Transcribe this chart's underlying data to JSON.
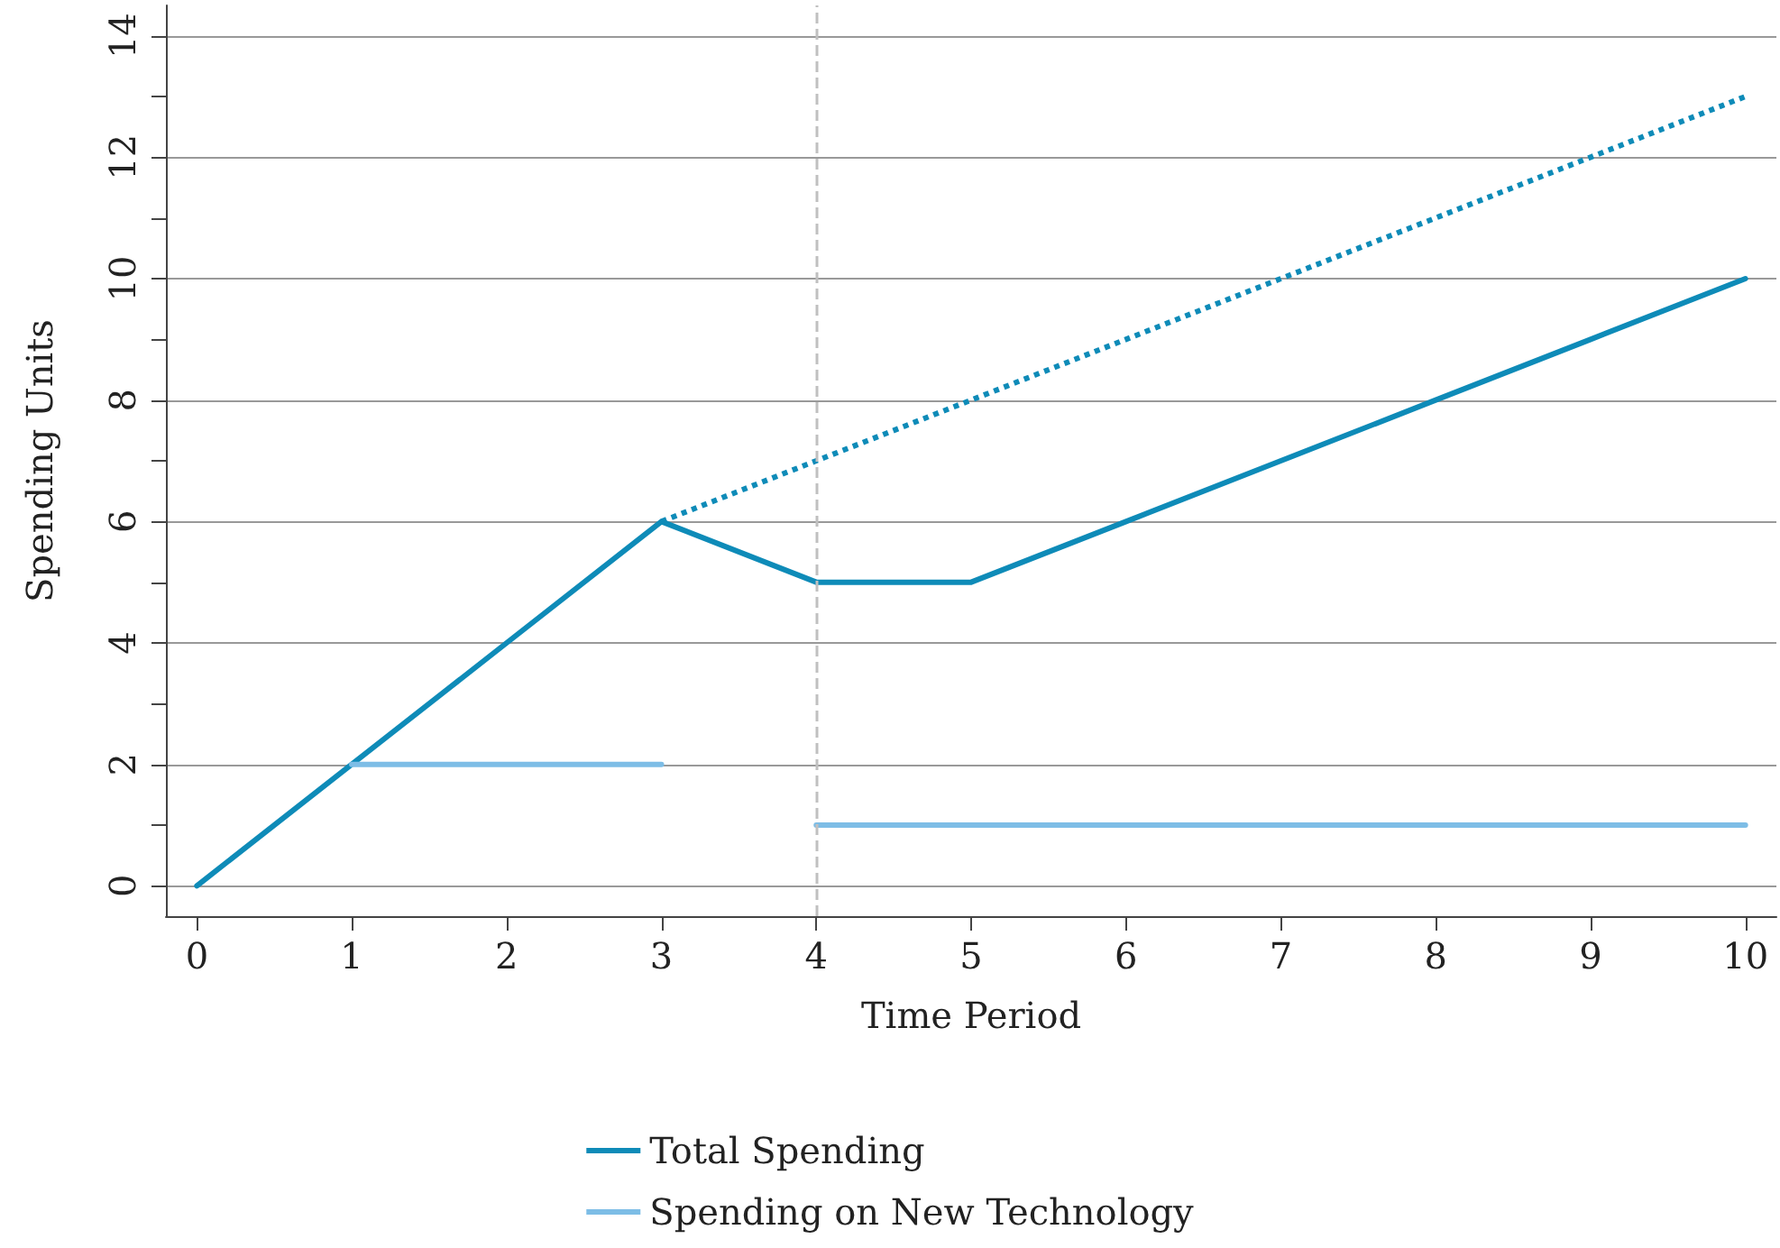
{
  "chart_data": {
    "type": "line",
    "xlabel": "Time Period",
    "ylabel": "Spending Units",
    "series": [
      {
        "name": "Total Spending",
        "color": "#0e8bb8",
        "x": [
          0,
          1,
          2,
          3,
          4,
          5,
          6,
          7,
          8,
          9,
          10
        ],
        "values": [
          0,
          2,
          4,
          6,
          5,
          5,
          6,
          7,
          8,
          9,
          10
        ]
      },
      {
        "color": "#0e8bb8",
        "line_style": "dotted",
        "x": [
          3,
          4,
          5,
          6,
          7,
          8,
          9,
          10
        ],
        "values": [
          6,
          7,
          8,
          9,
          10,
          11,
          12,
          13
        ]
      },
      {
        "name": "Spending on New Technology",
        "color": "#7dbde6",
        "x": [
          1,
          2,
          3,
          3.5,
          4,
          5,
          6,
          7,
          8,
          9,
          10
        ],
        "values": [
          2,
          2,
          2,
          null,
          1,
          1,
          1,
          1,
          1,
          1,
          1
        ]
      }
    ],
    "xlim": [
      -0.2,
      10.2
    ],
    "xticks": [
      0,
      1,
      2,
      3,
      4,
      5,
      6,
      7,
      8,
      9,
      10
    ],
    "ylim": [
      -0.5,
      14.5
    ],
    "yticks": [
      0,
      {
        "value": 1,
        "label": null
      },
      2,
      {
        "value": 3,
        "label": null
      },
      4,
      {
        "value": 5,
        "label": null
      },
      6,
      {
        "value": 7,
        "label": null
      },
      8,
      {
        "value": 9,
        "label": null
      },
      10,
      {
        "value": 11,
        "label": null
      },
      12,
      {
        "value": 13,
        "label": null
      },
      14
    ],
    "ref_lines": [
      {
        "axis": "x",
        "value": 4,
        "color": "#c0c0c0",
        "line_style": "dashed"
      }
    ],
    "grid": "y",
    "legend": "bottom",
    "line_style": "solid",
    "marker": "none"
  }
}
